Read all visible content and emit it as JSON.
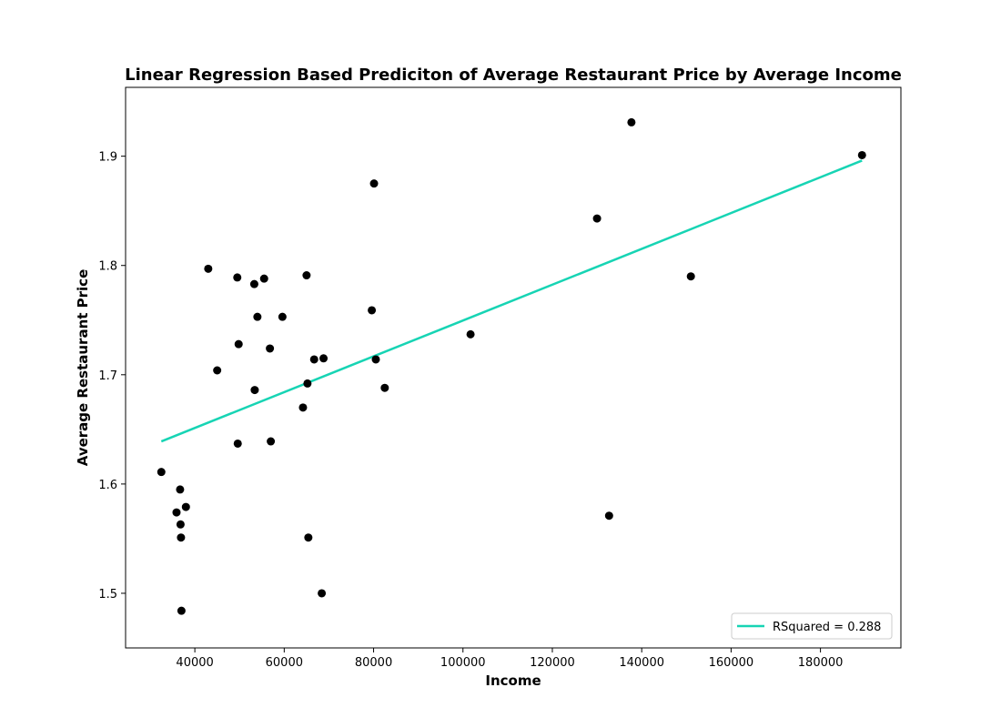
{
  "chart_data": {
    "type": "scatter",
    "title": "Linear Regression Based Prediciton of Average Restaurant Price by Average Income",
    "xlabel": "Income",
    "ylabel": "Average Restaurant Price",
    "xlim": [
      24500,
      198000
    ],
    "ylim": [
      1.45,
      1.963
    ],
    "xticks": [
      40000,
      60000,
      80000,
      100000,
      120000,
      140000,
      160000,
      180000
    ],
    "xtick_labels": [
      "40000",
      "60000",
      "80000",
      "100000",
      "120000",
      "140000",
      "160000",
      "180000"
    ],
    "yticks": [
      1.5,
      1.6,
      1.7,
      1.8,
      1.9
    ],
    "ytick_labels": [
      "1.5",
      "1.6",
      "1.7",
      "1.8",
      "1.9"
    ],
    "grid": false,
    "legend_position": "bottom-right",
    "colors": {
      "points": "#000000",
      "regression_line": "#17d4b4"
    },
    "series": [
      {
        "kind": "scatter",
        "x": [
          32500,
          35900,
          36700,
          36800,
          36900,
          37000,
          38000,
          43000,
          45000,
          49500,
          49600,
          49800,
          53300,
          53400,
          54000,
          55500,
          56800,
          57000,
          59600,
          64200,
          65000,
          65200,
          65400,
          66700,
          68400,
          68800,
          79600,
          80100,
          80500,
          82500,
          101700,
          130000,
          132700,
          137700,
          151000,
          189300
        ],
        "y": [
          1.611,
          1.574,
          1.595,
          1.563,
          1.551,
          1.484,
          1.579,
          1.797,
          1.704,
          1.789,
          1.637,
          1.728,
          1.783,
          1.686,
          1.753,
          1.788,
          1.724,
          1.639,
          1.753,
          1.67,
          1.791,
          1.692,
          1.551,
          1.714,
          1.5,
          1.715,
          1.759,
          1.875,
          1.714,
          1.688,
          1.737,
          1.843,
          1.571,
          1.931,
          1.79,
          1.901
        ]
      },
      {
        "kind": "line",
        "name": "RSquared = 0.288",
        "x": [
          32500,
          189300
        ],
        "y": [
          1.639,
          1.896
        ]
      }
    ]
  }
}
